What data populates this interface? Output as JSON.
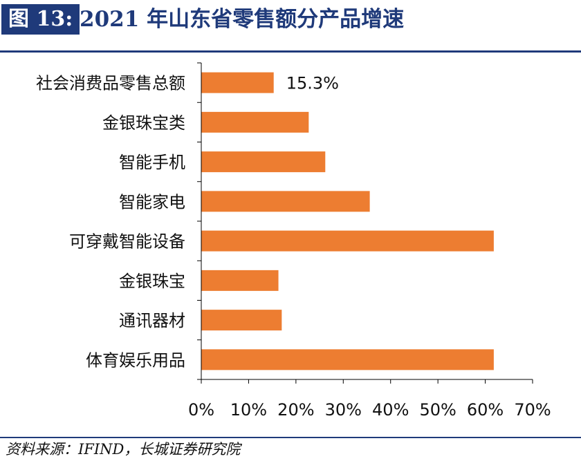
{
  "header": {
    "figure_label": "图 13:",
    "title": "2021 年山东省零售额分产品增速"
  },
  "chart_data": {
    "type": "bar",
    "orientation": "horizontal",
    "categories": [
      "社会消费品零售总额",
      "金银珠宝类",
      "智能手机",
      "智能家电",
      "可穿戴智能设备",
      "金银珠宝",
      "通讯器材",
      "体育娱乐用品"
    ],
    "values": [
      15.3,
      22.7,
      26.2,
      35.6,
      61.8,
      16.3,
      17.0,
      61.8
    ],
    "data_labels": [
      "15.3%",
      "",
      "",
      "",
      "",
      "",
      "",
      ""
    ],
    "x_ticks": [
      "0%",
      "10%",
      "20%",
      "30%",
      "40%",
      "50%",
      "60%",
      "70%"
    ],
    "xlim": [
      0,
      70
    ],
    "bar_color": "#ed7d31",
    "axis_color": "#000000",
    "grid": false,
    "legend": "none"
  },
  "footer": {
    "source": "资料来源：IFIND，长城证券研究院"
  },
  "colors": {
    "brand_navy": "#1f3a7a",
    "bar_orange": "#ed7d31"
  }
}
